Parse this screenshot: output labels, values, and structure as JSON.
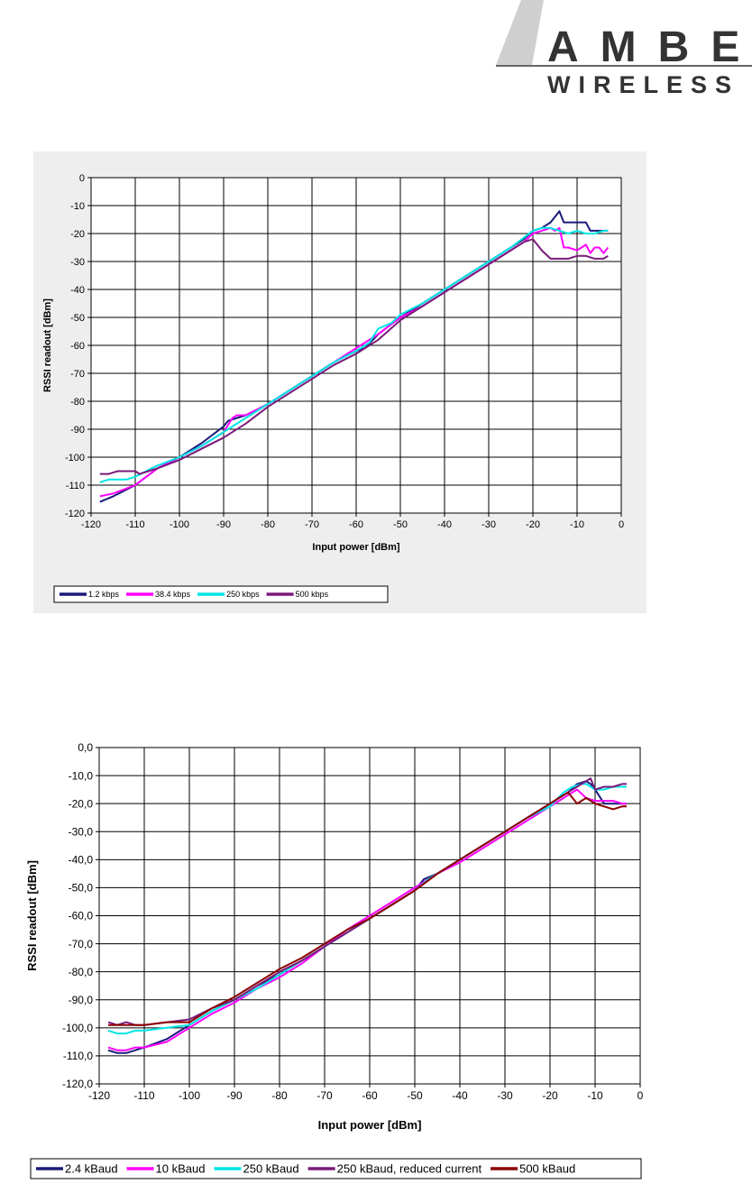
{
  "logo": {
    "brand_top": "AMBER",
    "brand_bottom": "WIRELESS"
  },
  "chart_data": [
    {
      "type": "line",
      "xlabel": "Input power [dBm]",
      "ylabel": "RSSI readout [dBm]",
      "xlim": [
        -120,
        0
      ],
      "ylim": [
        -120,
        0
      ],
      "xticks": [
        -120,
        -110,
        -100,
        -90,
        -80,
        -70,
        -60,
        -50,
        -40,
        -30,
        -20,
        -10,
        0
      ],
      "xtick_labels": [
        "-120",
        "-110",
        "-100",
        "-90",
        "-80",
        "-70",
        "-60",
        "-50",
        "-40",
        "-30",
        "-20",
        "-10",
        "0"
      ],
      "yticks": [
        0,
        -10,
        -20,
        -30,
        -40,
        -50,
        -60,
        -70,
        -80,
        -90,
        -100,
        -110,
        -120
      ],
      "ytick_labels": [
        "0",
        "-10",
        "-20",
        "-30",
        "-40",
        "-50",
        "-60",
        "-70",
        "-80",
        "-90",
        "-100",
        "-110",
        "-120"
      ],
      "grid": true,
      "legend_position": "bottom",
      "series": [
        {
          "name": "1.2 kbps",
          "color": "#1a1a7a",
          "x": [
            -118,
            -115,
            -110,
            -105,
            -100,
            -95,
            -90,
            -89,
            -85,
            -80,
            -75,
            -70,
            -65,
            -60,
            -58,
            -55,
            -50,
            -45,
            -40,
            -35,
            -30,
            -25,
            -22,
            -20,
            -18,
            -16,
            -14,
            -13,
            -12,
            -10,
            -8,
            -7,
            -6,
            -5,
            -3
          ],
          "y": [
            -116,
            -114,
            -110,
            -104,
            -100,
            -95,
            -89,
            -87,
            -85,
            -81,
            -76,
            -71,
            -66,
            -62,
            -61,
            -56,
            -50,
            -45,
            -40,
            -35,
            -30,
            -25,
            -22,
            -19,
            -18,
            -16,
            -12,
            -16,
            -16,
            -16,
            -16,
            -19,
            -19,
            -19,
            -19
          ]
        },
        {
          "name": "38.4 kbps",
          "color": "#ff00ff",
          "x": [
            -118,
            -115,
            -110,
            -105,
            -100,
            -95,
            -90,
            -88,
            -87,
            -85,
            -80,
            -75,
            -70,
            -65,
            -60,
            -55,
            -50,
            -45,
            -40,
            -35,
            -30,
            -25,
            -22,
            -20,
            -18,
            -16,
            -15,
            -14,
            -13,
            -12,
            -10,
            -8,
            -7,
            -6,
            -5,
            -4,
            -3
          ],
          "y": [
            -114,
            -113,
            -110,
            -104,
            -100,
            -96,
            -91,
            -86,
            -85,
            -85,
            -81,
            -76,
            -71,
            -66,
            -61,
            -56,
            -50,
            -46,
            -41,
            -36,
            -31,
            -26,
            -23,
            -20,
            -19,
            -18,
            -19,
            -18,
            -25,
            -25,
            -26,
            -24,
            -27,
            -25,
            -25,
            -27,
            -25
          ]
        },
        {
          "name": "250 kbps",
          "color": "#00e5e5",
          "x": [
            -118,
            -116,
            -112,
            -110,
            -105,
            -100,
            -95,
            -90,
            -85,
            -80,
            -75,
            -70,
            -65,
            -60,
            -57,
            -55,
            -52,
            -50,
            -45,
            -40,
            -35,
            -30,
            -25,
            -20,
            -18,
            -16,
            -14,
            -12,
            -10,
            -8,
            -6,
            -4,
            -3
          ],
          "y": [
            -109,
            -108,
            -108,
            -107,
            -103,
            -100,
            -96,
            -91,
            -86,
            -81,
            -76,
            -71,
            -66,
            -62,
            -59,
            -54,
            -52,
            -49,
            -45,
            -40,
            -35,
            -30,
            -25,
            -19,
            -18,
            -18,
            -19,
            -20,
            -19,
            -20,
            -20,
            -19,
            -19
          ]
        },
        {
          "name": "500 kbps",
          "color": "#7a1a7a",
          "x": [
            -118,
            -116,
            -114,
            -112,
            -110,
            -109,
            -107,
            -105,
            -100,
            -95,
            -90,
            -85,
            -80,
            -75,
            -70,
            -65,
            -60,
            -55,
            -50,
            -45,
            -40,
            -35,
            -30,
            -25,
            -22,
            -20,
            -19,
            -18,
            -16,
            -14,
            -12,
            -10,
            -8,
            -6,
            -4,
            -3
          ],
          "y": [
            -106,
            -106,
            -105,
            -105,
            -105,
            -106,
            -105,
            -104,
            -101,
            -97,
            -93,
            -88,
            -82,
            -77,
            -72,
            -67,
            -63,
            -58,
            -51,
            -46,
            -41,
            -36,
            -31,
            -26,
            -23,
            -22,
            -24,
            -26,
            -29,
            -29,
            -29,
            -28,
            -28,
            -29,
            -29,
            -28
          ]
        }
      ]
    },
    {
      "type": "line",
      "xlabel": "Input power [dBm]",
      "ylabel": "RSSI readout [dBm]",
      "xlim": [
        -120,
        0
      ],
      "ylim": [
        -120,
        0
      ],
      "xticks": [
        -120,
        -110,
        -100,
        -90,
        -80,
        -70,
        -60,
        -50,
        -40,
        -30,
        -20,
        -10,
        0
      ],
      "xtick_labels": [
        "-120",
        "-110",
        "-100",
        "-90",
        "-80",
        "-70",
        "-60",
        "-50",
        "-40",
        "-30",
        "-20",
        "-10",
        "0"
      ],
      "yticks": [
        0,
        -10,
        -20,
        -30,
        -40,
        -50,
        -60,
        -70,
        -80,
        -90,
        -100,
        -110,
        -120
      ],
      "ytick_labels": [
        "0,0",
        "-10,0",
        "-20,0",
        "-30,0",
        "-40,0",
        "-50,0",
        "-60,0",
        "-70,0",
        "-80,0",
        "-90,0",
        "-100,0",
        "-110,0",
        "-120,0"
      ],
      "grid": true,
      "legend_position": "bottom",
      "series": [
        {
          "name": "2.4 kBaud",
          "color": "#1a1a7a",
          "x": [
            -118,
            -116,
            -114,
            -112,
            -110,
            -105,
            -100,
            -95,
            -90,
            -85,
            -80,
            -75,
            -70,
            -65,
            -60,
            -55,
            -50,
            -48,
            -45,
            -40,
            -35,
            -30,
            -25,
            -20,
            -18,
            -16,
            -14,
            -12,
            -11,
            -10,
            -8,
            -6,
            -4,
            -3
          ],
          "y": [
            -108,
            -109,
            -109,
            -108,
            -107,
            -104,
            -99,
            -94,
            -90,
            -85,
            -81,
            -76,
            -71,
            -66,
            -61,
            -56,
            -51,
            -47,
            -45,
            -40,
            -35,
            -30,
            -25,
            -20,
            -18,
            -16,
            -13,
            -12,
            -13,
            -15,
            -20,
            -20,
            -20,
            -20
          ]
        },
        {
          "name": "10 kBaud",
          "color": "#ff00ff",
          "x": [
            -118,
            -116,
            -114,
            -112,
            -110,
            -105,
            -100,
            -95,
            -90,
            -85,
            -80,
            -75,
            -70,
            -65,
            -60,
            -55,
            -50,
            -45,
            -40,
            -35,
            -30,
            -25,
            -20,
            -18,
            -16,
            -14,
            -12,
            -10,
            -8,
            -6,
            -4,
            -3
          ],
          "y": [
            -107,
            -108,
            -108,
            -107,
            -107,
            -105,
            -100,
            -95,
            -91,
            -86,
            -82,
            -77,
            -71,
            -65,
            -60,
            -55,
            -50,
            -45,
            -41,
            -36,
            -31,
            -26,
            -21,
            -19,
            -17,
            -15,
            -18,
            -19,
            -19,
            -19,
            -20,
            -20
          ]
        },
        {
          "name": "250 kBaud",
          "color": "#00e5e5",
          "x": [
            -118,
            -116,
            -114,
            -112,
            -110,
            -105,
            -100,
            -95,
            -90,
            -85,
            -80,
            -75,
            -70,
            -65,
            -60,
            -55,
            -50,
            -47,
            -45,
            -40,
            -35,
            -30,
            -25,
            -20,
            -17,
            -15,
            -13,
            -12,
            -10,
            -8,
            -6,
            -4,
            -3
          ],
          "y": [
            -101,
            -102,
            -102,
            -101,
            -101,
            -100,
            -99,
            -94,
            -90,
            -86,
            -81,
            -76,
            -71,
            -66,
            -61,
            -56,
            -51,
            -47,
            -45,
            -40,
            -35,
            -30,
            -25,
            -21,
            -16,
            -14,
            -13,
            -13,
            -15,
            -15,
            -14,
            -14,
            -14
          ]
        },
        {
          "name": "250 kBaud, reduced current",
          "color": "#7a1a7a",
          "x": [
            -118,
            -116,
            -114,
            -112,
            -110,
            -105,
            -100,
            -95,
            -90,
            -85,
            -80,
            -75,
            -70,
            -65,
            -60,
            -55,
            -50,
            -45,
            -40,
            -35,
            -30,
            -25,
            -20,
            -18,
            -16,
            -14,
            -12,
            -11,
            -10,
            -8,
            -6,
            -4,
            -3
          ],
          "y": [
            -98,
            -99,
            -98,
            -99,
            -99,
            -98,
            -97,
            -93,
            -90,
            -85,
            -80,
            -76,
            -71,
            -66,
            -61,
            -56,
            -51,
            -45,
            -40,
            -35,
            -30,
            -25,
            -20,
            -18,
            -16,
            -14,
            -12,
            -11,
            -15,
            -14,
            -14,
            -13,
            -13
          ]
        },
        {
          "name": "500 kBaud",
          "color": "#8b0000",
          "x": [
            -118,
            -116,
            -114,
            -112,
            -110,
            -105,
            -100,
            -95,
            -90,
            -85,
            -80,
            -75,
            -70,
            -65,
            -60,
            -55,
            -50,
            -45,
            -40,
            -35,
            -30,
            -25,
            -20,
            -18,
            -17,
            -16,
            -14,
            -12,
            -10,
            -8,
            -6,
            -4,
            -3
          ],
          "y": [
            -99,
            -99,
            -99,
            -99,
            -99,
            -98,
            -98,
            -93,
            -89,
            -84,
            -79,
            -75,
            -70,
            -65,
            -61,
            -56,
            -51,
            -45,
            -40,
            -35,
            -30,
            -25,
            -20,
            -18,
            -17,
            -16,
            -20,
            -18,
            -20,
            -21,
            -22,
            -21,
            -21
          ]
        }
      ]
    }
  ]
}
